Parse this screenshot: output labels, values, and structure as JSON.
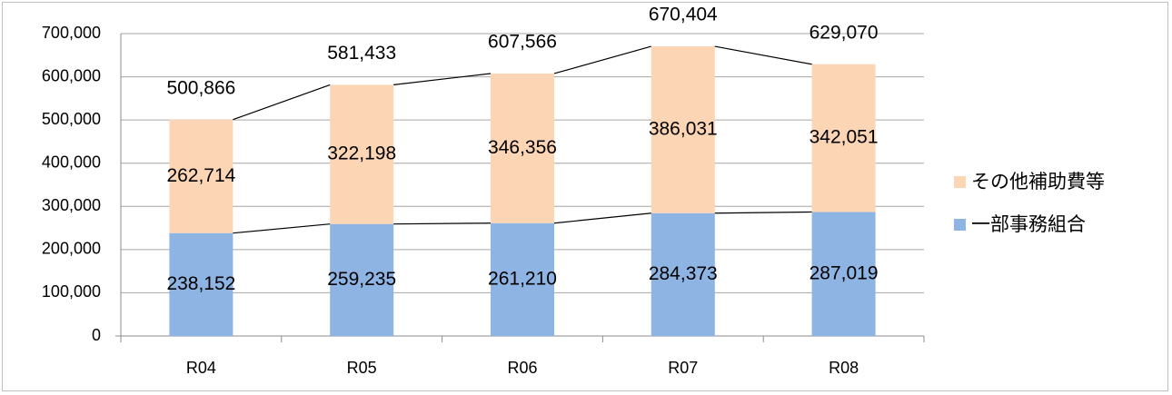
{
  "chart_data": {
    "type": "bar",
    "stacked": true,
    "categories": [
      "R04",
      "R05",
      "R06",
      "R07",
      "R08"
    ],
    "series": [
      {
        "name": "一部事務組合",
        "values": [
          238152,
          259235,
          261210,
          284373,
          287019
        ],
        "color": "#8eb4e3"
      },
      {
        "name": "その他補助費等",
        "values": [
          262714,
          322198,
          346356,
          386031,
          342051
        ],
        "color": "#fcd5b5"
      }
    ],
    "totals": [
      500866,
      581433,
      607566,
      670404,
      629070
    ],
    "series_lines": true,
    "ylim": [
      0,
      700000
    ],
    "yticks": [
      0,
      100000,
      200000,
      300000,
      400000,
      500000,
      600000,
      700000
    ],
    "ytick_labels": [
      "0",
      "100,000",
      "200,000",
      "300,000",
      "400,000",
      "500,000",
      "600,000",
      "700,000"
    ],
    "grid": true,
    "legend_position": "right",
    "legend_order": [
      "その他補助費等",
      "一部事務組合"
    ]
  }
}
